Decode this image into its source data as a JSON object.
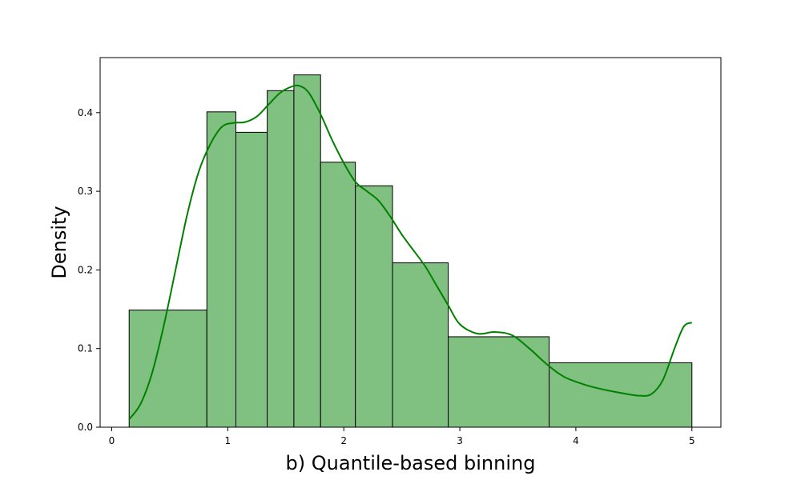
{
  "chart_data": {
    "type": "bar",
    "subtype": "histogram-with-kde",
    "title": "",
    "xlabel": "b) Quantile-based binning",
    "ylabel": "Density",
    "xlim": [
      -0.1,
      5.25
    ],
    "ylim": [
      0.0,
      0.47
    ],
    "xticks": [
      0,
      1,
      2,
      3,
      4,
      5
    ],
    "yticks": [
      0.0,
      0.1,
      0.2,
      0.3,
      0.4
    ],
    "xtick_labels": [
      "0",
      "1",
      "2",
      "3",
      "4",
      "5"
    ],
    "ytick_labels": [
      "0.0",
      "0.1",
      "0.2",
      "0.3",
      "0.4"
    ],
    "grid": false,
    "colors": {
      "bar_fill": "#80c080",
      "bar_edge": "#000000",
      "kde_line": "#008000"
    },
    "bins": [
      {
        "x0": 0.15,
        "x1": 0.82,
        "density": 0.149
      },
      {
        "x0": 0.82,
        "x1": 1.07,
        "density": 0.401
      },
      {
        "x0": 1.07,
        "x1": 1.34,
        "density": 0.375
      },
      {
        "x0": 1.34,
        "x1": 1.57,
        "density": 0.428
      },
      {
        "x0": 1.57,
        "x1": 1.8,
        "density": 0.448
      },
      {
        "x0": 1.8,
        "x1": 2.1,
        "density": 0.337
      },
      {
        "x0": 2.1,
        "x1": 2.42,
        "density": 0.307
      },
      {
        "x0": 2.42,
        "x1": 2.9,
        "density": 0.209
      },
      {
        "x0": 2.9,
        "x1": 3.77,
        "density": 0.115
      },
      {
        "x0": 3.77,
        "x1": 5.0,
        "density": 0.082
      }
    ],
    "kde": {
      "x": [
        0.15,
        0.25,
        0.35,
        0.45,
        0.55,
        0.65,
        0.75,
        0.85,
        0.95,
        1.05,
        1.15,
        1.25,
        1.35,
        1.45,
        1.55,
        1.62,
        1.7,
        1.8,
        1.9,
        2.0,
        2.1,
        2.2,
        2.3,
        2.4,
        2.5,
        2.6,
        2.7,
        2.8,
        2.9,
        3.0,
        3.15,
        3.3,
        3.45,
        3.6,
        3.75,
        3.9,
        4.1,
        4.3,
        4.45,
        4.55,
        4.65,
        4.75,
        4.85,
        4.93,
        5.0
      ],
      "y": [
        0.01,
        0.03,
        0.07,
        0.13,
        0.2,
        0.27,
        0.325,
        0.36,
        0.382,
        0.387,
        0.388,
        0.395,
        0.41,
        0.425,
        0.433,
        0.434,
        0.425,
        0.398,
        0.365,
        0.336,
        0.312,
        0.3,
        0.288,
        0.268,
        0.245,
        0.225,
        0.205,
        0.18,
        0.155,
        0.131,
        0.119,
        0.121,
        0.117,
        0.1,
        0.08,
        0.064,
        0.053,
        0.046,
        0.042,
        0.04,
        0.042,
        0.06,
        0.1,
        0.128,
        0.133
      ]
    }
  }
}
